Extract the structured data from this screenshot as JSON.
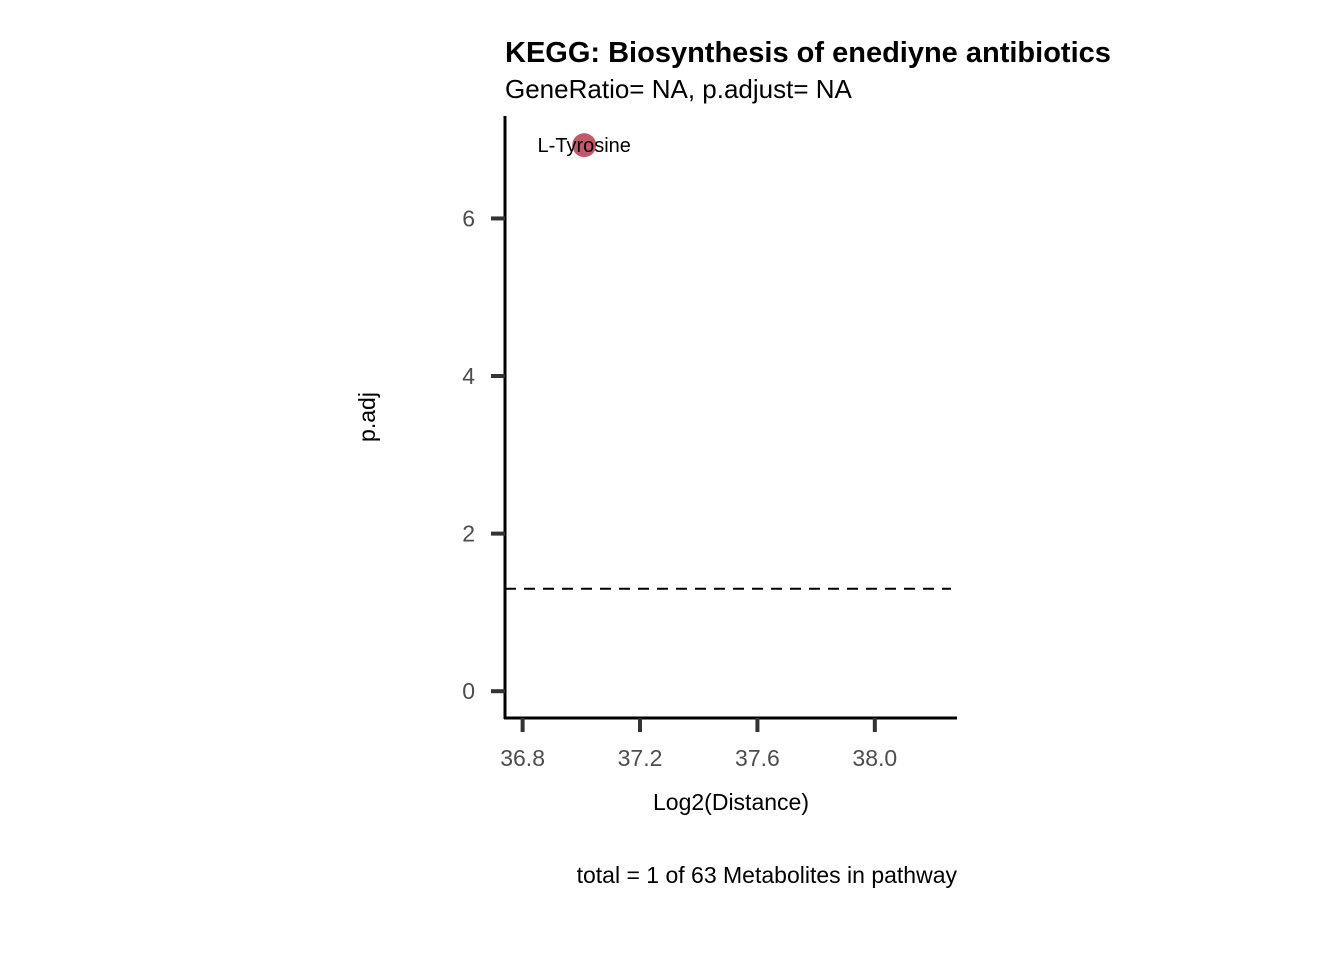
{
  "chart_data": {
    "type": "scatter",
    "title": "KEGG: Biosynthesis of enediyne antibiotics",
    "subtitle": "GeneRatio= NA, p.adjust= NA",
    "xlabel": "Log2(Distance)",
    "ylabel": "p.adj",
    "caption": "total = 1 of 63 Metabolites in pathway",
    "xlim": [
      36.74,
      38.28
    ],
    "ylim": [
      -0.34,
      7.3
    ],
    "x_ticks": [
      36.8,
      37.2,
      37.6,
      38.0
    ],
    "x_tick_labels": [
      "36.8",
      "37.2",
      "37.6",
      "38.0"
    ],
    "y_ticks": [
      0,
      2,
      4,
      6
    ],
    "y_tick_labels": [
      "0",
      "2",
      "4",
      "6"
    ],
    "threshold_line": {
      "y": 1.3,
      "style": "dashed"
    },
    "grid": false,
    "points": [
      {
        "x": 37.01,
        "y": 6.93,
        "label": "L-Tyrosine",
        "color": "#c4586b"
      }
    ]
  }
}
